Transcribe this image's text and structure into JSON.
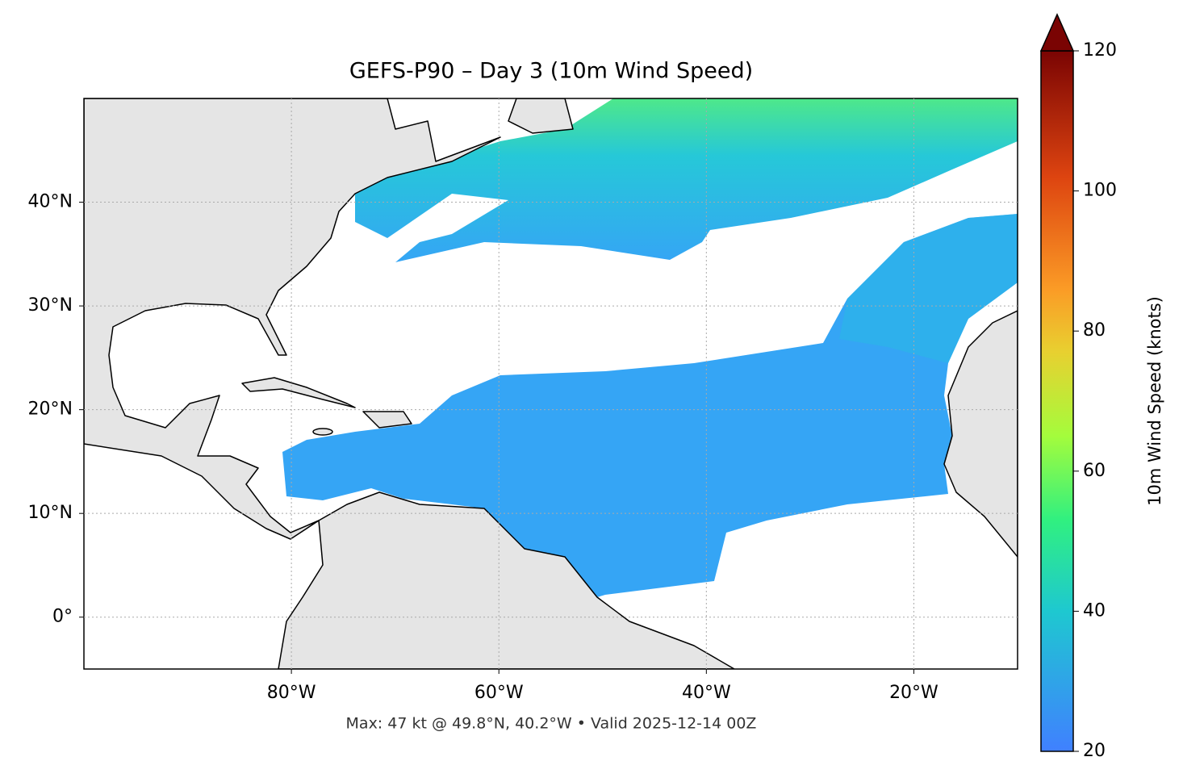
{
  "chart_data": {
    "type": "map",
    "title": "GEFS-P90 – Day 3 (10m Wind Speed)",
    "xlim": [
      -100,
      -10
    ],
    "ylim": [
      -5,
      50
    ],
    "xticks": [
      {
        "value": -80,
        "label": "80°W"
      },
      {
        "value": -60,
        "label": "60°W"
      },
      {
        "value": -40,
        "label": "40°W"
      },
      {
        "value": -20,
        "label": "20°W"
      }
    ],
    "yticks": [
      {
        "value": 0,
        "label": "0°"
      },
      {
        "value": 10,
        "label": "10°N"
      },
      {
        "value": 20,
        "label": "20°N"
      },
      {
        "value": 30,
        "label": "30°N"
      },
      {
        "value": 40,
        "label": "40°N"
      }
    ],
    "grid": true,
    "annotation": "Max: 47 kt @ 49.8°N, 40.2°W • Valid 2025-12-14 00Z",
    "colorbar": {
      "label": "10m Wind Speed (knots)",
      "lim": [
        20,
        120
      ],
      "ticks": [
        20,
        40,
        60,
        80,
        100,
        120
      ],
      "extend": "max"
    }
  }
}
